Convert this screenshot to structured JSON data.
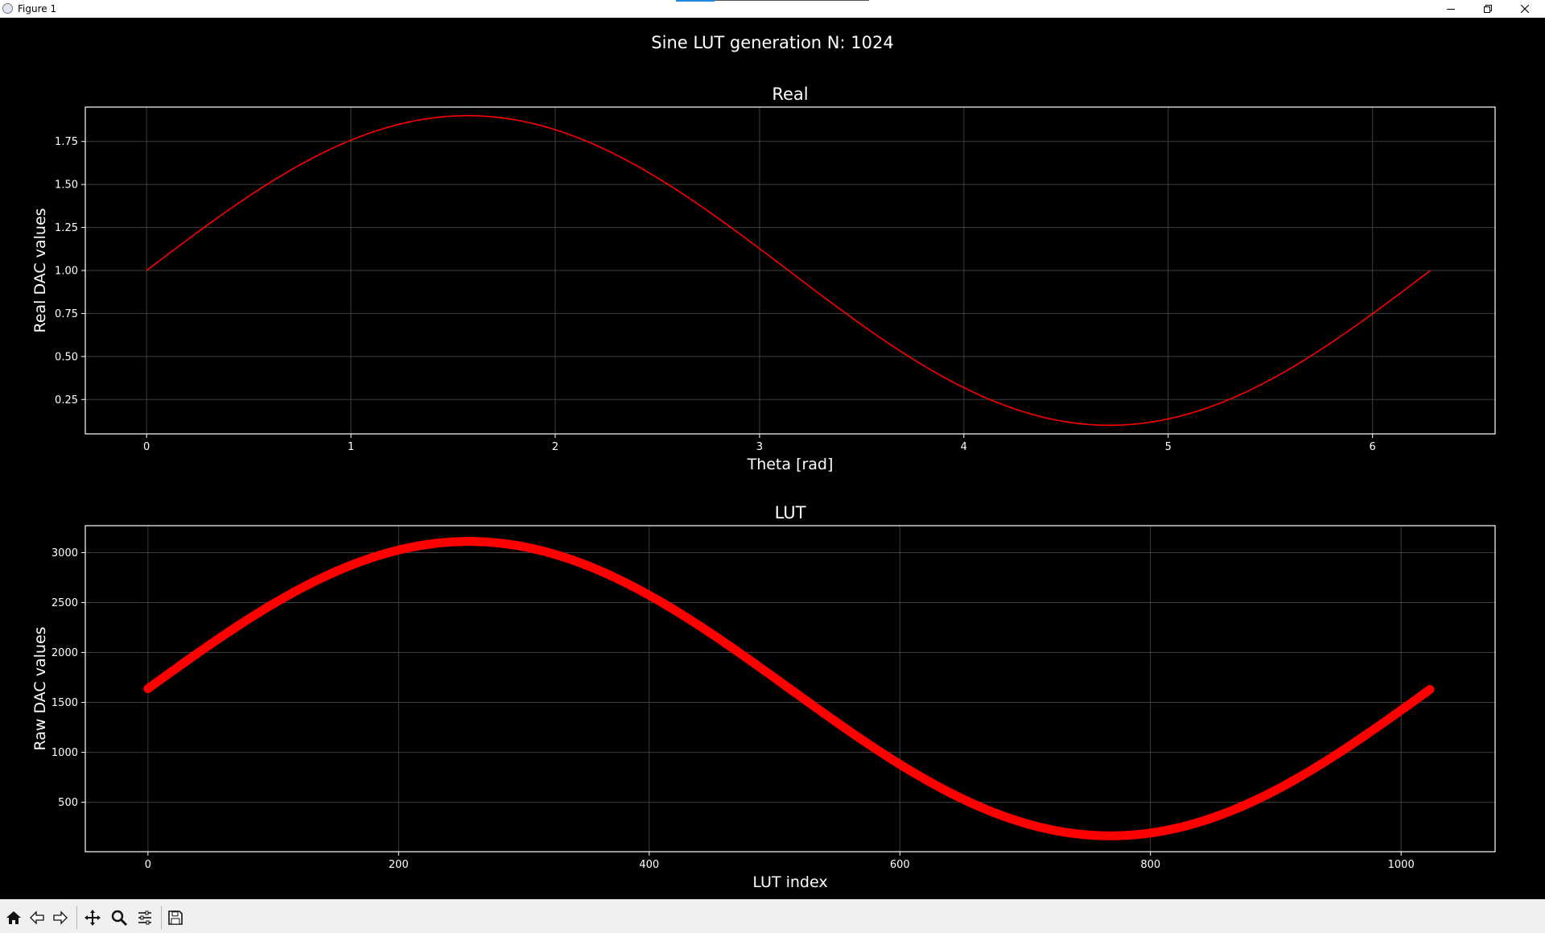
{
  "window": {
    "title": "Figure 1"
  },
  "toolbar": {
    "items": [
      "home-icon",
      "back-arrow-icon",
      "forward-arrow-icon",
      "pan-icon",
      "zoom-icon",
      "configure-subplots-icon",
      "save-icon"
    ]
  },
  "chart_data": [
    {
      "type": "line",
      "suptitle": "Sine LUT generation N: 1024",
      "title": "Real",
      "xlabel": "Theta [rad]",
      "ylabel": "Real DAC values",
      "function": "1 + 0.9*sin(x)",
      "x": [
        0,
        0.5236,
        1.0472,
        1.5708,
        2.0944,
        2.618,
        3.1416,
        3.6652,
        4.1888,
        4.7124,
        5.236,
        5.7596,
        6.2832
      ],
      "y": [
        1.0,
        1.45,
        1.78,
        1.9,
        1.78,
        1.45,
        1.0,
        0.55,
        0.22,
        0.1,
        0.22,
        0.55,
        1.0
      ],
      "xlim": [
        -0.3,
        6.6
      ],
      "ylim": [
        0.05,
        1.95
      ],
      "xticks": [
        0,
        1,
        2,
        3,
        4,
        5,
        6
      ],
      "xtick_labels": [
        "0",
        "1",
        "2",
        "3",
        "4",
        "5",
        "6"
      ],
      "yticks": [
        0.25,
        0.5,
        0.75,
        1.0,
        1.25,
        1.5,
        1.75
      ],
      "ytick_labels": [
        "0.25",
        "0.50",
        "0.75",
        "1.00",
        "1.25",
        "1.50",
        "1.75"
      ],
      "grid": true,
      "color": "#ff0000"
    },
    {
      "type": "scatter",
      "title": "LUT",
      "xlabel": "LUT index",
      "ylabel": "Raw DAC values",
      "n_points": 1024,
      "x": [
        0,
        128,
        256,
        384,
        512,
        640,
        768,
        896,
        1023
      ],
      "y": [
        1638,
        2681,
        3112,
        2681,
        1638,
        595,
        164,
        595,
        1638
      ],
      "xlim": [
        -50,
        1075
      ],
      "ylim": [
        5,
        3270
      ],
      "xticks": [
        0,
        200,
        400,
        600,
        800,
        1000
      ],
      "xtick_labels": [
        "0",
        "200",
        "400",
        "600",
        "800",
        "1000"
      ],
      "yticks": [
        500,
        1000,
        1500,
        2000,
        2500,
        3000
      ],
      "ytick_labels": [
        "500",
        "1000",
        "1500",
        "2000",
        "2500",
        "3000"
      ],
      "grid": true,
      "color": "#ff0000"
    }
  ]
}
